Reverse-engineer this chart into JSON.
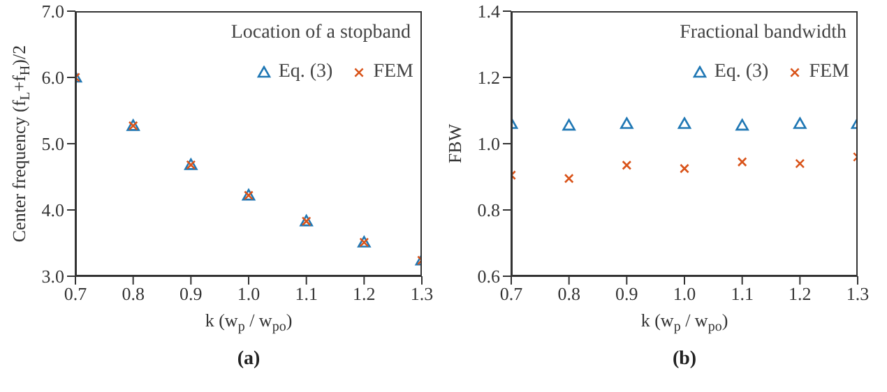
{
  "chart_data": [
    {
      "type": "scatter",
      "title": "Location of a stopband",
      "xlabel": "k (w$_{p}$ / w$_{po}$)",
      "ylabel": "Center frequency (f$_{L}$+f$_{H}$)/2",
      "x": [
        0.7,
        0.8,
        0.9,
        1.0,
        1.1,
        1.2,
        1.3
      ],
      "series": [
        {
          "name": "Eq. (3)",
          "color": "#1f77b4",
          "marker": "triangle",
          "values": [
            6.0,
            5.27,
            4.68,
            4.22,
            3.83,
            3.51,
            3.24
          ]
        },
        {
          "name": "FEM",
          "color": "#d95319",
          "marker": "cross",
          "values": [
            6.0,
            5.27,
            4.68,
            4.22,
            3.83,
            3.51,
            3.24
          ]
        }
      ],
      "xlim": [
        0.7,
        1.3
      ],
      "xticks": [
        {
          "value": 0.7,
          "label": "0.7"
        },
        {
          "value": 0.8,
          "label": "0.8"
        },
        {
          "value": 0.9,
          "label": "0.9"
        },
        {
          "value": 1.0,
          "label": "1.0"
        },
        {
          "value": 1.1,
          "label": "1.1"
        },
        {
          "value": 1.2,
          "label": "1.2"
        },
        {
          "value": 1.3,
          "label": "1.3"
        }
      ],
      "ylim": [
        3.0,
        7.0
      ],
      "yticks": [
        {
          "value": 3,
          "label": "3.0"
        },
        {
          "value": 4,
          "label": "4.0"
        },
        {
          "value": 5,
          "label": "5.0"
        },
        {
          "value": 6,
          "label": "6.0"
        },
        {
          "value": 7,
          "label": "7.0"
        }
      ],
      "grid": false,
      "legend": "top right",
      "annotations": [
        "(a)"
      ]
    },
    {
      "type": "scatter",
      "title": "Fractional bandwidth",
      "xlabel": "k (w$_{p}$ / w$_{po}$)",
      "ylabel": "FBW",
      "x": [
        0.7,
        0.8,
        0.9,
        1.0,
        1.1,
        1.2,
        1.3
      ],
      "series": [
        {
          "name": "Eq. (3)",
          "color": "#1f77b4",
          "marker": "triangle",
          "values": [
            1.06,
            1.055,
            1.06,
            1.06,
            1.055,
            1.06,
            1.06
          ]
        },
        {
          "name": "FEM",
          "color": "#d95319",
          "marker": "cross",
          "values": [
            0.905,
            0.895,
            0.935,
            0.925,
            0.945,
            0.94,
            0.96
          ]
        }
      ],
      "xlim": [
        0.7,
        1.3
      ],
      "xticks": [
        {
          "value": 0.7,
          "label": "0.7"
        },
        {
          "value": 0.8,
          "label": "0.8"
        },
        {
          "value": 0.9,
          "label": "0.9"
        },
        {
          "value": 1.0,
          "label": "1.0"
        },
        {
          "value": 1.1,
          "label": "1.1"
        },
        {
          "value": 1.2,
          "label": "1.2"
        },
        {
          "value": 1.3,
          "label": "1.3"
        }
      ],
      "ylim": [
        0.6,
        1.4
      ],
      "yticks": [
        {
          "value": 0.6,
          "label": "0.6"
        },
        {
          "value": 0.8,
          "label": "0.8"
        },
        {
          "value": 1.0,
          "label": "1.0"
        },
        {
          "value": 1.2,
          "label": "1.2"
        },
        {
          "value": 1.4,
          "label": "1.4"
        }
      ],
      "grid": false,
      "legend": "top right",
      "annotations": [
        "(b)"
      ]
    }
  ]
}
